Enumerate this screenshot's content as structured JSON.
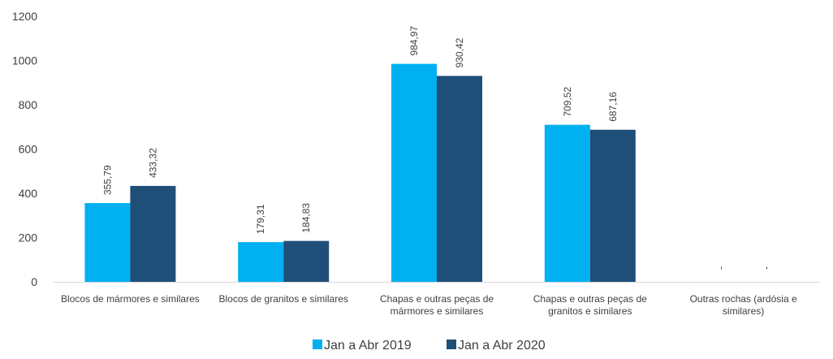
{
  "chart_data": {
    "type": "bar",
    "title": "",
    "xlabel": "",
    "ylabel": "",
    "ylim": [
      0,
      1200
    ],
    "yticks": [
      0,
      200,
      400,
      600,
      800,
      1000,
      1200
    ],
    "grid": false,
    "legend_position": "bottom",
    "categories": [
      [
        "Blocos de mármores e similares"
      ],
      [
        "Blocos de granitos e similares"
      ],
      [
        "Chapas e outras peças de",
        "mármores e similares"
      ],
      [
        "Chapas e outras peças de",
        "granitos e similares"
      ],
      [
        "Outras rochas (ardósia e",
        "similares)"
      ]
    ],
    "series": [
      {
        "name": "Jan a Abr 2019",
        "color": "#00B0F0",
        "values": [
          355.79,
          179.31,
          984.97,
          709.52,
          null
        ],
        "labels": [
          "355,79",
          "179,31",
          "984,97",
          "709,52",
          "-"
        ]
      },
      {
        "name": "Jan a Abr 2020",
        "color": "#1F4E79",
        "values": [
          433.32,
          184.83,
          930.42,
          687.16,
          null
        ],
        "labels": [
          "433,32",
          "184,83",
          "930,42",
          "687,16",
          "-"
        ]
      }
    ]
  }
}
